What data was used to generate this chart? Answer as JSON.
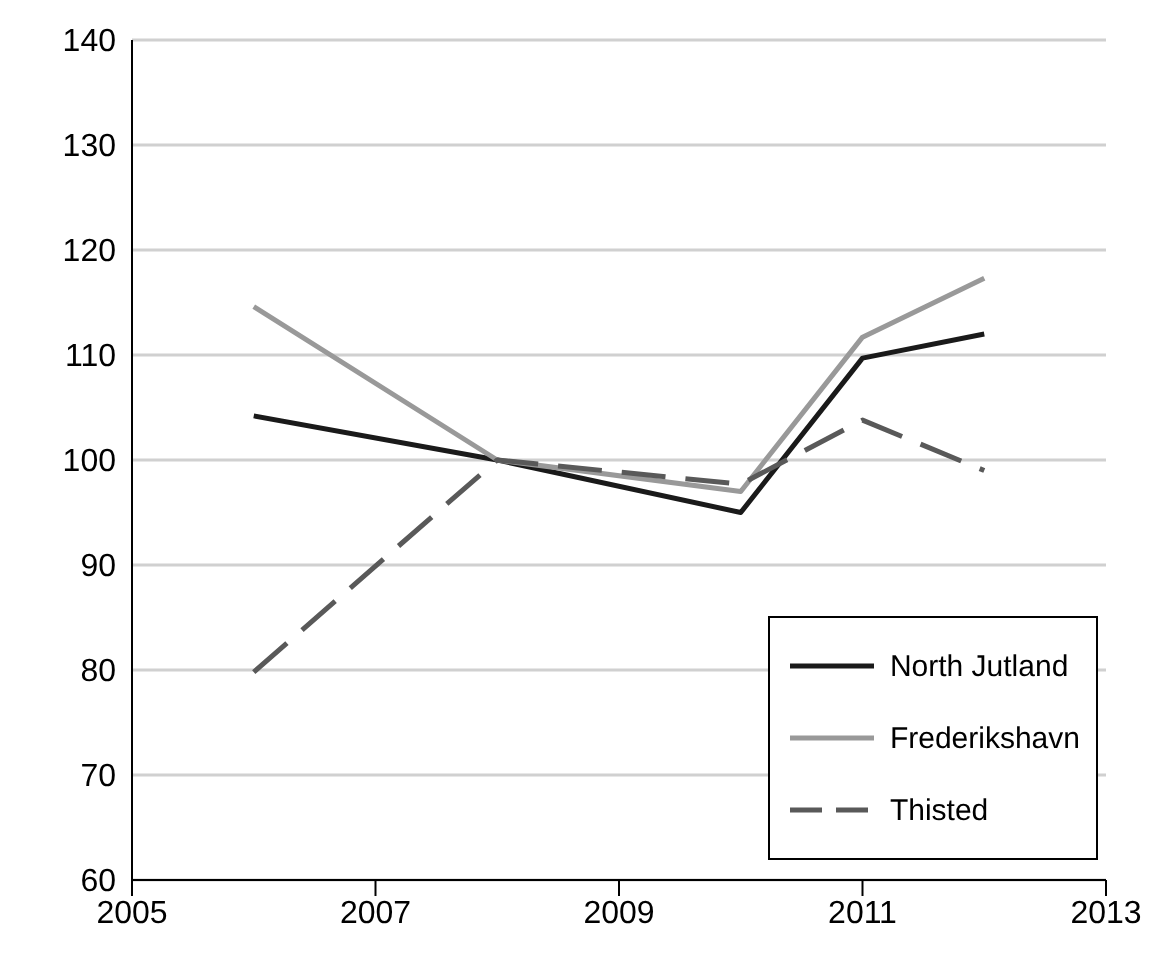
{
  "chart_data": {
    "type": "line",
    "x": [
      2006,
      2008,
      2010,
      2011,
      2012
    ],
    "series": [
      {
        "name": "North Jutland",
        "color": "#1a1a1a",
        "values": [
          104.2,
          100,
          95,
          109.7,
          112
        ],
        "line_style": "solid"
      },
      {
        "name": "Frederikshavn",
        "color": "#999999",
        "values": [
          114.6,
          100,
          97,
          111.7,
          117.3
        ],
        "line_style": "solid"
      },
      {
        "name": "Thisted",
        "color": "#595959",
        "values": [
          79.8,
          100,
          97.7,
          103.8,
          99
        ],
        "line_style": "dashed"
      }
    ],
    "xlim": [
      2005,
      2013
    ],
    "xticks": [
      2005,
      2007,
      2009,
      2011,
      2013
    ],
    "ylim": [
      60,
      140
    ],
    "yticks": [
      60,
      70,
      80,
      90,
      100,
      110,
      120,
      130,
      140
    ],
    "grid": "y",
    "legend": "bottom right",
    "marker": "none"
  }
}
